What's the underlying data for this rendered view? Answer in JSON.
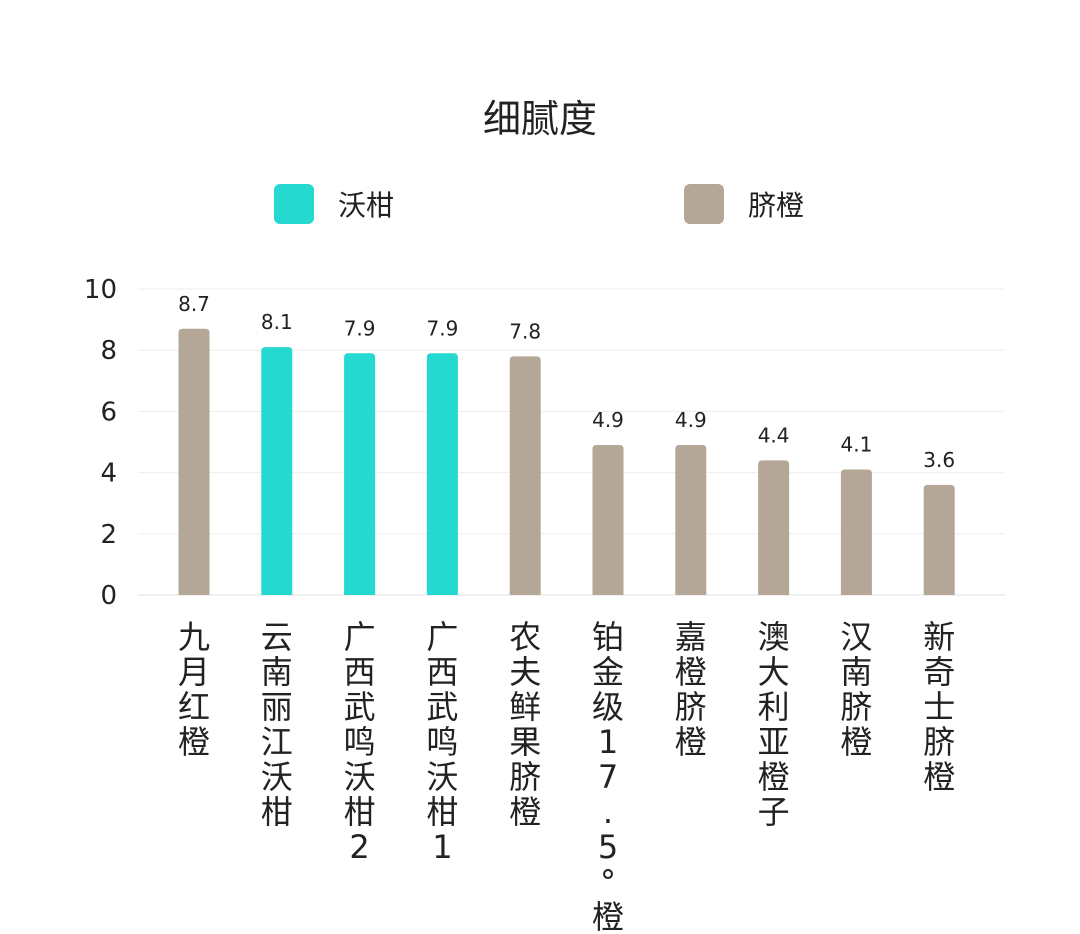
{
  "chart_data": {
    "type": "bar",
    "title": "细腻度",
    "categories": [
      "九月红橙",
      "云南丽江沃柑",
      "广西武鸣沃柑2",
      "广西武鸣沃柑1",
      "农夫鲜果脐橙",
      "铂金级17.5°橙",
      "嘉橙脐橙",
      "澳大利亚橙子",
      "汉南脐橙",
      "新奇士脐橙"
    ],
    "values": [
      8.7,
      8.1,
      7.9,
      7.9,
      7.8,
      4.9,
      4.9,
      4.4,
      4.1,
      3.6
    ],
    "data_labels": [
      "8.7",
      "8.1",
      "7.9",
      "7.9",
      "7.8",
      "4.9",
      "4.9",
      "4.4",
      "4.1",
      "3.6"
    ],
    "series_index": [
      1,
      0,
      0,
      0,
      1,
      1,
      1,
      1,
      1,
      1
    ],
    "series": [
      {
        "name": "沃柑",
        "color": "#25D8D0"
      },
      {
        "name": "脐橙",
        "color": "#B5A797"
      }
    ],
    "ylim": [
      0,
      10
    ],
    "yticks": [
      0,
      2,
      4,
      6,
      8,
      10
    ],
    "grid": true,
    "legend_position": "top",
    "xlabel": "",
    "ylabel": ""
  }
}
